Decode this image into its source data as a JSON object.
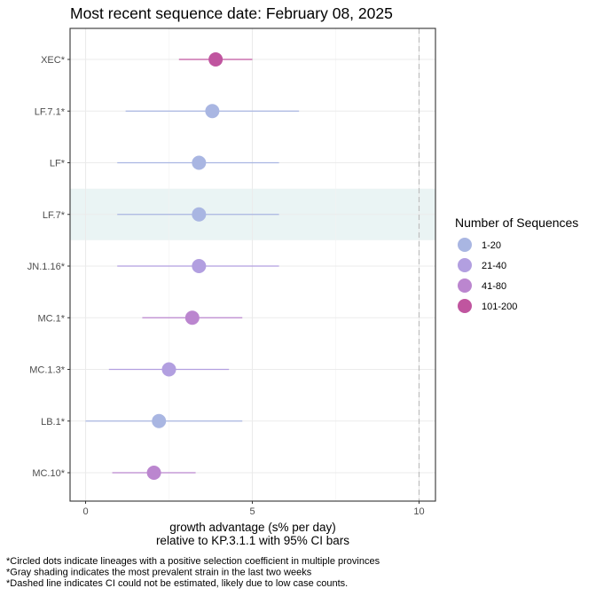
{
  "chart_data": {
    "type": "scatter",
    "title": "Most recent sequence date: February 08, 2025",
    "xlabel_line1": "growth advantage (s% per day)",
    "xlabel_line2": "relative to  KP.3.1.1  with 95% CI bars",
    "xlim": [
      -0.5,
      10.5
    ],
    "xticks": [
      0,
      5,
      10
    ],
    "dashed_line_x": 10,
    "shaded_lineage": "LF.7*",
    "lineages": [
      {
        "label": "XEC*",
        "value": 3.9,
        "low": 2.8,
        "high": 5.0,
        "group": "101-200"
      },
      {
        "label": "LF.7.1*",
        "value": 3.8,
        "low": 1.2,
        "high": 6.4,
        "group": "1-20"
      },
      {
        "label": "LF*",
        "value": 3.4,
        "low": 0.95,
        "high": 5.8,
        "group": "1-20"
      },
      {
        "label": "LF.7*",
        "value": 3.4,
        "low": 0.95,
        "high": 5.8,
        "group": "1-20"
      },
      {
        "label": "JN.1.16*",
        "value": 3.4,
        "low": 0.95,
        "high": 5.8,
        "group": "21-40"
      },
      {
        "label": "MC.1*",
        "value": 3.2,
        "low": 1.7,
        "high": 4.7,
        "group": "41-80"
      },
      {
        "label": "MC.1.3*",
        "value": 2.5,
        "low": 0.7,
        "high": 4.3,
        "group": "21-40"
      },
      {
        "label": "LB.1*",
        "value": 2.2,
        "low": 0.0,
        "high": 4.7,
        "group": "1-20"
      },
      {
        "label": "MC.10*",
        "value": 2.05,
        "low": 0.8,
        "high": 3.3,
        "group": "41-80"
      }
    ],
    "legend": {
      "title": "Number of Sequences",
      "position": "right",
      "entries": [
        {
          "label": "1-20",
          "color": "#a9b6e2"
        },
        {
          "label": "21-40",
          "color": "#b29fe0"
        },
        {
          "label": "41-80",
          "color": "#bb86cf"
        },
        {
          "label": "101-200",
          "color": "#c0559f"
        }
      ]
    },
    "footnotes": [
      "*Circled dots indicate lineages with a positive selection coefficient in multiple provinces",
      "*Gray shading indicates the most prevalent strain in the last two weeks",
      "*Dashed line indicates CI could not be estimated, likely due to low case counts."
    ],
    "colors": {
      "shade": "#eaf4f4",
      "grid": "#ebebeb",
      "dashed": "#bdbdbd"
    }
  }
}
